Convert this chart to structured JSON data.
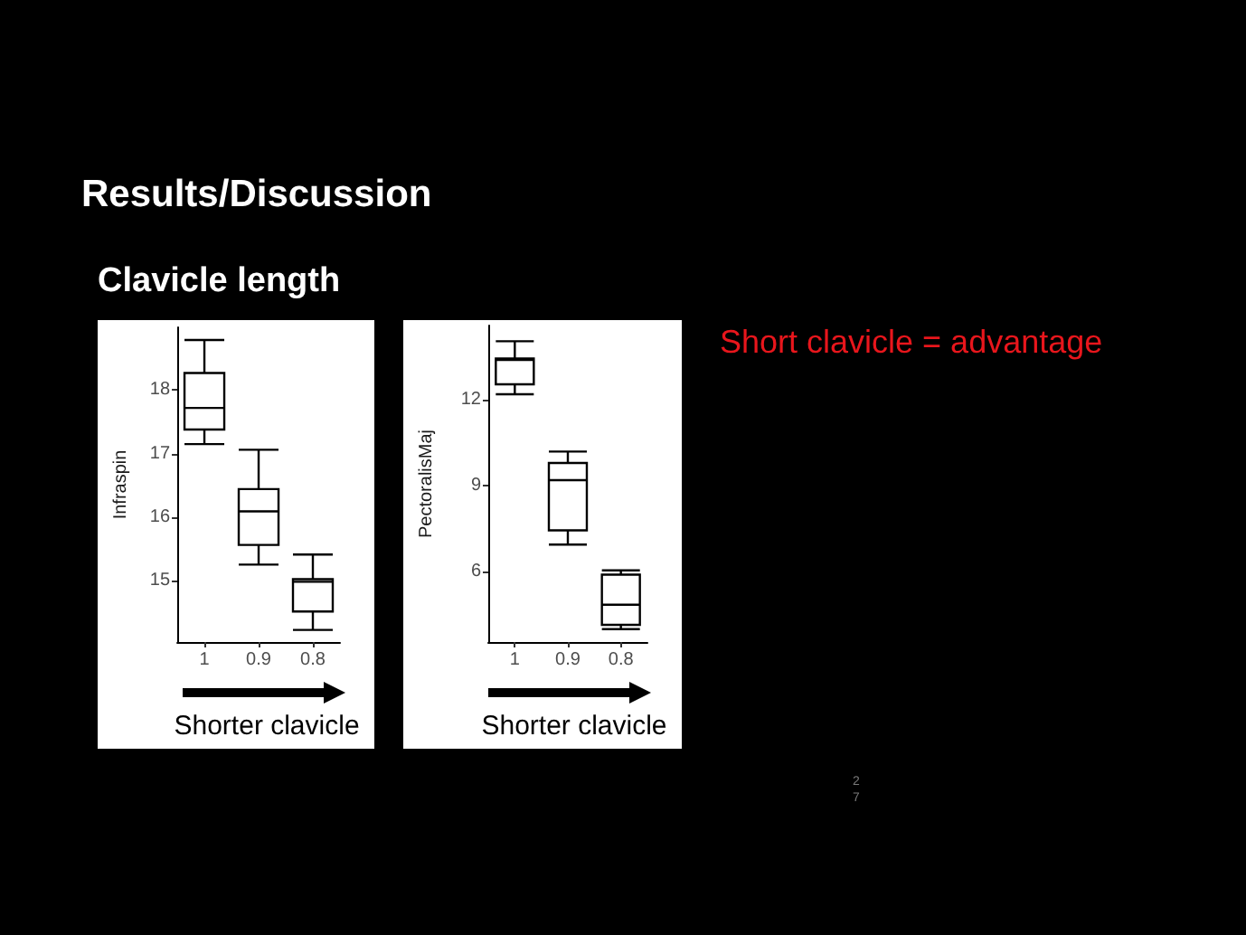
{
  "chart_data": [
    {
      "type": "box",
      "title": "Results/Discussion",
      "subtitle": "Clavicle length",
      "categories": [
        "1",
        "0.9",
        "0.8"
      ],
      "xlabel": "Shorter clavicle",
      "ylabel": "Infraspin",
      "color": "#000000",
      "boxes": [
        {
          "low": 17.15,
          "q1": 17.38,
          "median": 17.72,
          "q3": 18.27,
          "high": 18.79
        },
        {
          "low": 15.25,
          "q1": 15.56,
          "median": 16.09,
          "q3": 16.44,
          "high": 17.06
        },
        {
          "low": 14.22,
          "q1": 14.51,
          "median": 14.98,
          "q3": 15.02,
          "high": 15.41
        }
      ],
      "ylim": [
        14.03,
        18.99
      ],
      "yticks": [
        15,
        16,
        17,
        18
      ],
      "grid": false
    },
    {
      "type": "box",
      "categories": [
        "1",
        "0.9",
        "0.8"
      ],
      "xlabel": "Shorter clavicle",
      "ylabel": "PectoralisMaj",
      "color": "#000000",
      "boxes": [
        {
          "low": 12.2,
          "q1": 12.55,
          "median": 13.4,
          "q3": 13.45,
          "high": 14.05
        },
        {
          "low": 6.95,
          "q1": 7.45,
          "median": 9.2,
          "q3": 9.8,
          "high": 10.2
        },
        {
          "low": 4.0,
          "q1": 4.15,
          "median": 4.85,
          "q3": 5.9,
          "high": 6.05
        }
      ],
      "ylim": [
        3.55,
        14.6
      ],
      "yticks": [
        6,
        9,
        12
      ],
      "grid": false,
      "annotations": [
        "Short clavicle = advantage",
        "27"
      ]
    }
  ]
}
